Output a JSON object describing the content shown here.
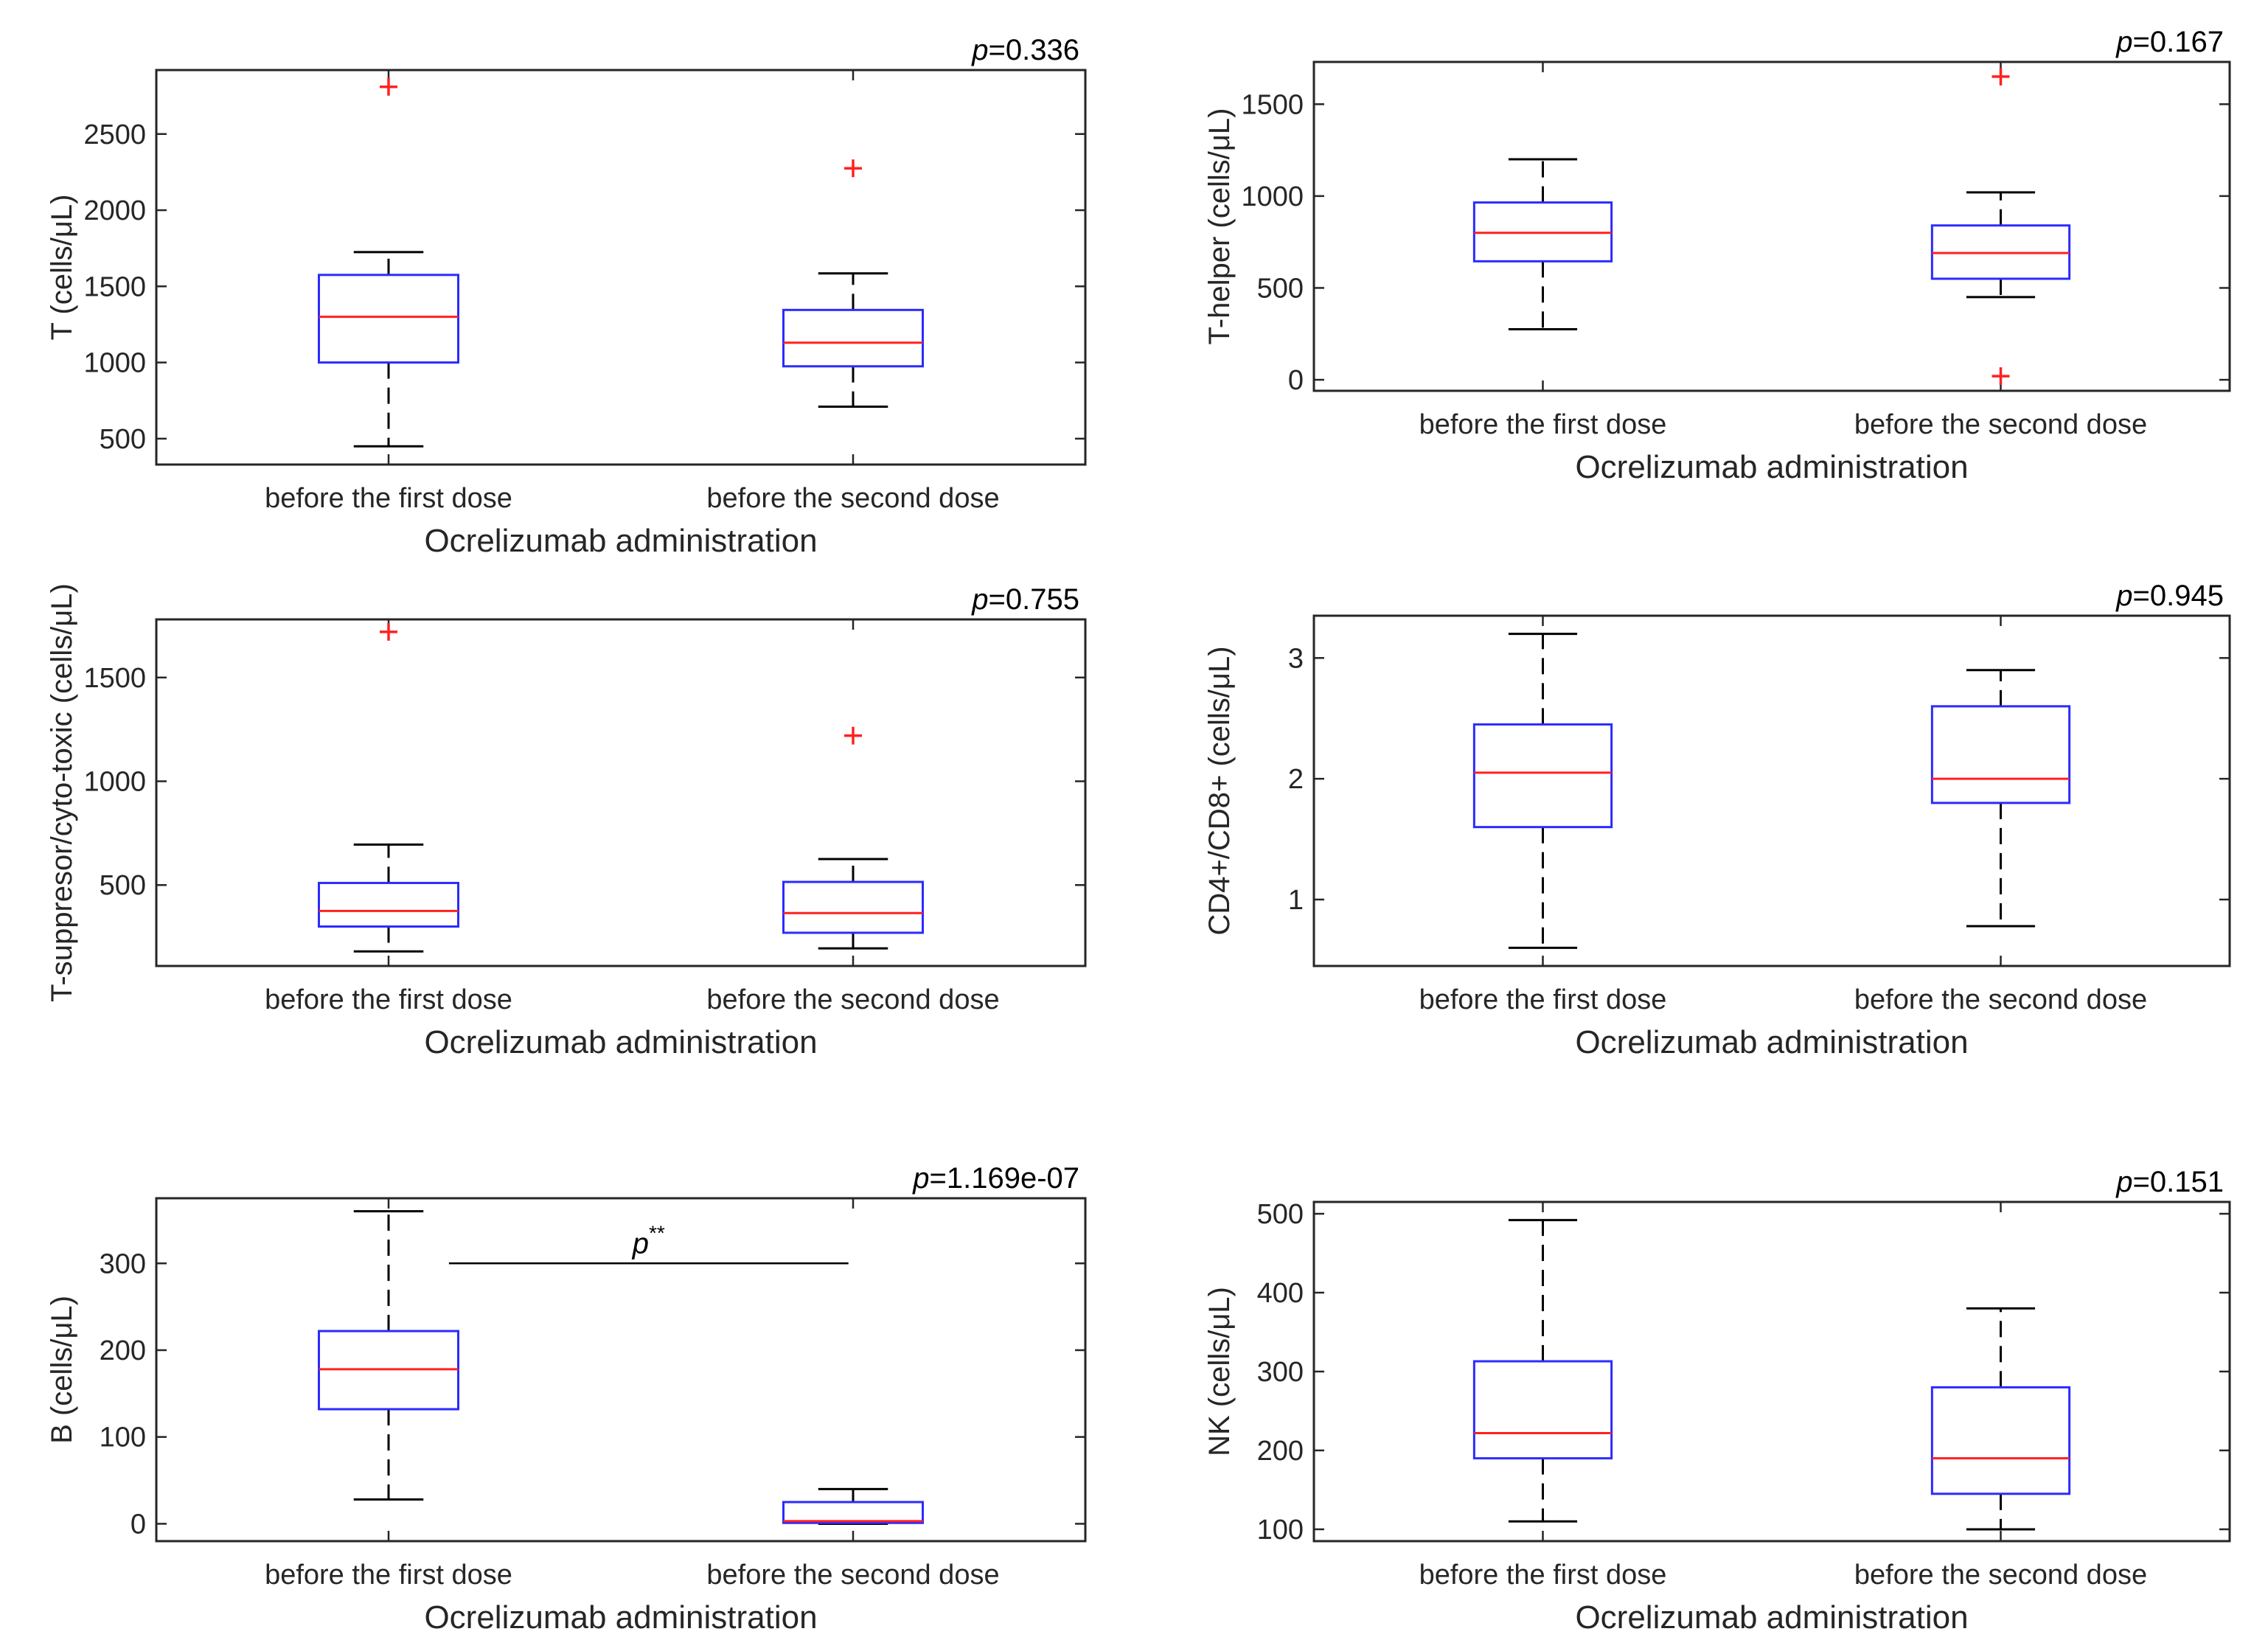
{
  "chart_data": [
    {
      "type": "box",
      "panel": "top-left",
      "ylabel": "T (cells/μL)",
      "xlabel": "Ocrelizumab administration",
      "categories": [
        "before the first dose",
        "before the second dose"
      ],
      "ylim": [
        330,
        2920
      ],
      "yticks": [
        500,
        1000,
        1500,
        2000,
        2500
      ],
      "p_prefix": "p",
      "p_value": "=0.336",
      "boxes": [
        {
          "whisker_low": 450,
          "q1": 1000,
          "median": 1300,
          "q3": 1575,
          "whisker_high": 1725,
          "outliers": [
            2810
          ]
        },
        {
          "whisker_low": 710,
          "q1": 975,
          "median": 1130,
          "q3": 1345,
          "whisker_high": 1585,
          "outliers": [
            2275
          ]
        }
      ]
    },
    {
      "type": "box",
      "panel": "top-right",
      "ylabel": "T-helper (cells/μL)",
      "xlabel": "Ocrelizumab administration",
      "categories": [
        "before the first dose",
        "before the second dose"
      ],
      "ylim": [
        -60,
        1730
      ],
      "yticks": [
        0,
        500,
        1000,
        1500
      ],
      "p_prefix": "p",
      "p_value": "=0.167",
      "boxes": [
        {
          "whisker_low": 275,
          "q1": 645,
          "median": 800,
          "q3": 965,
          "whisker_high": 1200,
          "outliers": []
        },
        {
          "whisker_low": 450,
          "q1": 550,
          "median": 690,
          "q3": 840,
          "whisker_high": 1020,
          "outliers": [
            1650,
            20
          ]
        }
      ]
    },
    {
      "type": "box",
      "panel": "middle-left",
      "ylabel": "T-suppresor/cyto-toxic (cells/μL)",
      "xlabel": "Ocrelizumab administration",
      "categories": [
        "before the first dose",
        "before the second dose"
      ],
      "ylim": [
        110,
        1780
      ],
      "yticks": [
        500,
        1000,
        1500
      ],
      "p_prefix": "p",
      "p_value": "=0.755",
      "boxes": [
        {
          "whisker_low": 180,
          "q1": 300,
          "median": 375,
          "q3": 510,
          "whisker_high": 695,
          "outliers": [
            1720
          ]
        },
        {
          "whisker_low": 195,
          "q1": 270,
          "median": 365,
          "q3": 515,
          "whisker_high": 625,
          "outliers": [
            1220
          ]
        }
      ]
    },
    {
      "type": "box",
      "panel": "middle-right",
      "ylabel": "CD4+/CD8+ (cells/μL)",
      "xlabel": "Ocrelizumab administration",
      "categories": [
        "before the first dose",
        "before the second dose"
      ],
      "ylim": [
        0.45,
        3.35
      ],
      "yticks": [
        1,
        2,
        3
      ],
      "p_prefix": "p",
      "p_value": "=0.945",
      "boxes": [
        {
          "whisker_low": 0.6,
          "q1": 1.6,
          "median": 2.05,
          "q3": 2.45,
          "whisker_high": 3.2,
          "outliers": []
        },
        {
          "whisker_low": 0.78,
          "q1": 1.8,
          "median": 2.0,
          "q3": 2.6,
          "whisker_high": 2.9,
          "outliers": []
        }
      ]
    },
    {
      "type": "box",
      "panel": "bottom-left",
      "ylabel": "B (cells/μL)",
      "xlabel": "Ocrelizumab administration",
      "categories": [
        "before the first dose",
        "before the second dose"
      ],
      "ylim": [
        -20,
        375
      ],
      "yticks": [
        0,
        100,
        200,
        300
      ],
      "p_prefix": "p",
      "p_value": "=1.169e-07",
      "significance": {
        "label": "p",
        "superscript": "**",
        "y": 300
      },
      "boxes": [
        {
          "whisker_low": 28,
          "q1": 132,
          "median": 178,
          "q3": 222,
          "whisker_high": 360,
          "outliers": []
        },
        {
          "whisker_low": 0,
          "q1": 1,
          "median": 3,
          "q3": 25,
          "whisker_high": 40,
          "outliers": []
        }
      ]
    },
    {
      "type": "box",
      "panel": "bottom-right",
      "ylabel": "NK (cells/μL)",
      "xlabel": "Ocrelizumab administration",
      "categories": [
        "before the first dose",
        "before the second dose"
      ],
      "ylim": [
        85,
        515
      ],
      "yticks": [
        100,
        200,
        300,
        400,
        500
      ],
      "p_prefix": "p",
      "p_value": "=0.151",
      "boxes": [
        {
          "whisker_low": 110,
          "q1": 190,
          "median": 222,
          "q3": 313,
          "whisker_high": 492,
          "outliers": []
        },
        {
          "whisker_low": 100,
          "q1": 145,
          "median": 190,
          "q3": 280,
          "whisker_high": 380,
          "outliers": []
        }
      ]
    }
  ]
}
